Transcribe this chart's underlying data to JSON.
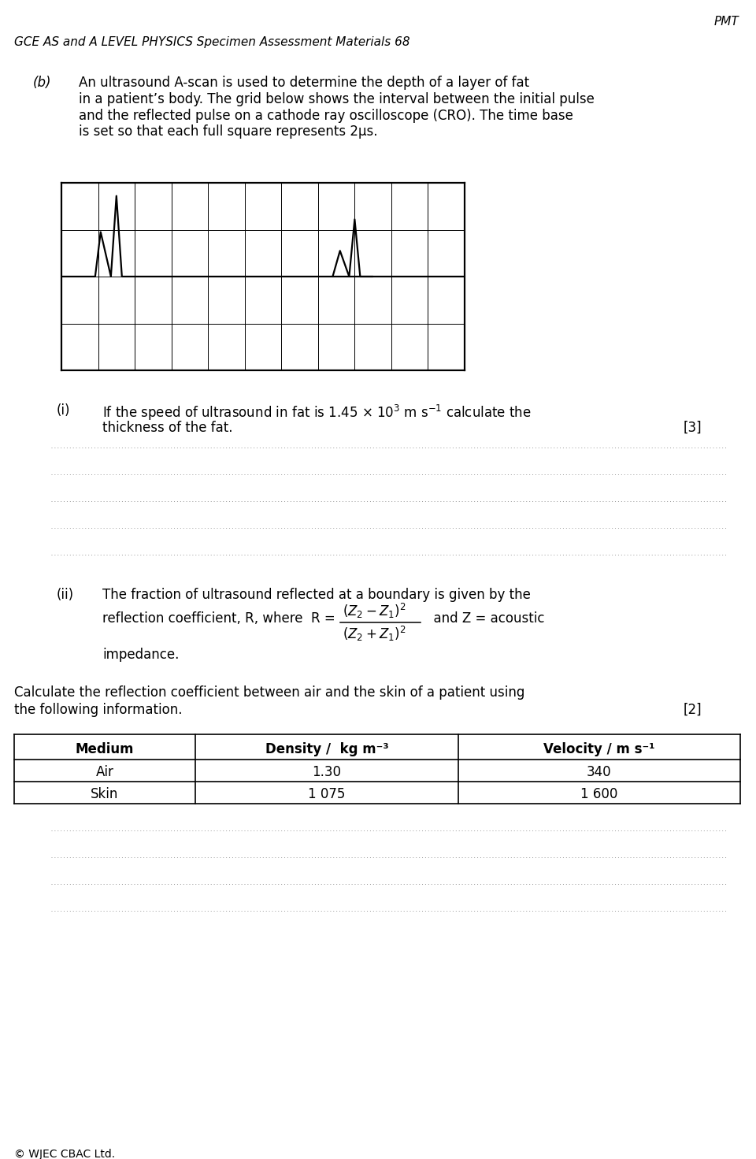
{
  "page_title": "PMT",
  "header": "GCE AS and A LEVEL PHYSICS Specimen Assessment Materials 68",
  "part_b_label": "(b)",
  "part_b_text": "An ultrasound A-scan is used to determine the depth of a layer of fat\nin a patient’s body. The grid below shows the interval between the initial pulse\nand the reflected pulse on a cathode ray oscilloscope (CRO). The time base\nis set so that each full square represents 2µs.",
  "grid_cols": 11,
  "grid_rows": 4,
  "part_i_label": "(i)",
  "part_i_marks": "[3]",
  "dotted_lines_i": 5,
  "part_ii_label": "(ii)",
  "part_ii_text1": "The fraction of ultrasound reflected at a boundary is given by the",
  "part_ii_text2": "reflection coefficient, R, where  R =",
  "part_ii_impedance": "impedance.",
  "part_ii_text3": "  and Z = acoustic",
  "calc_text1": "Calculate the reflection coefficient between air and the skin of a patient using",
  "calc_text2": "the following information.",
  "calc_marks": "[2]",
  "table_headers": [
    "Medium",
    "Density /  kg m⁻³",
    "Velocity / m s⁻¹"
  ],
  "table_row1": [
    "Air",
    "1.30",
    "340"
  ],
  "table_row2": [
    "Skin",
    "1 075",
    "1 600"
  ],
  "dotted_lines_ii": 4,
  "footer": "© WJEC CBAC Ltd.",
  "bg_color": "#ffffff",
  "text_color": "#000000",
  "grid_color": "#000000",
  "dotted_color": "#888888"
}
